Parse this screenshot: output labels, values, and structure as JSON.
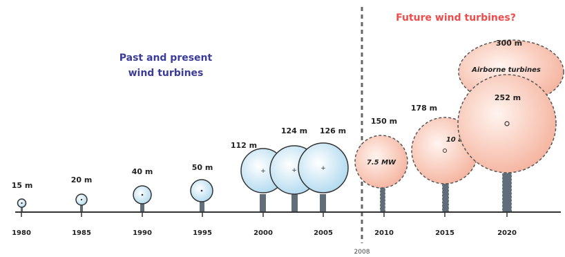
{
  "titles": {
    "past": [
      "Past and present",
      "wind turbines"
    ],
    "future": "Future wind turbines?"
  },
  "colors": {
    "past_title": "#3b3b9a",
    "future_title": "#ee4b4b",
    "past_fill_light": "#ffffff",
    "past_fill_dark": "#a9d6ee",
    "future_fill_light": "#fff1ec",
    "future_fill_dark": "#f6b7a3",
    "tower": "#5f6e78",
    "axis": "#333333"
  },
  "axis": {
    "years": [
      "1980",
      "1985",
      "1990",
      "1995",
      "2000",
      "2005",
      "2010",
      "2015",
      "2020"
    ],
    "marker_year": "2008"
  },
  "past_turbines": [
    {
      "size": "15 m"
    },
    {
      "size": "20 m"
    },
    {
      "size": "40 m"
    },
    {
      "size": "50 m"
    },
    {
      "size": "112 m"
    },
    {
      "size": "124 m"
    },
    {
      "size": "126 m"
    }
  ],
  "future_turbines": [
    {
      "size": "150 m",
      "note": "7.5 MW"
    },
    {
      "size": "178 m",
      "note": "10 and 20 MW"
    },
    {
      "size": "252 m",
      "note": ""
    }
  ],
  "airborne": {
    "size": "300 m",
    "note": "Airborne turbines"
  }
}
